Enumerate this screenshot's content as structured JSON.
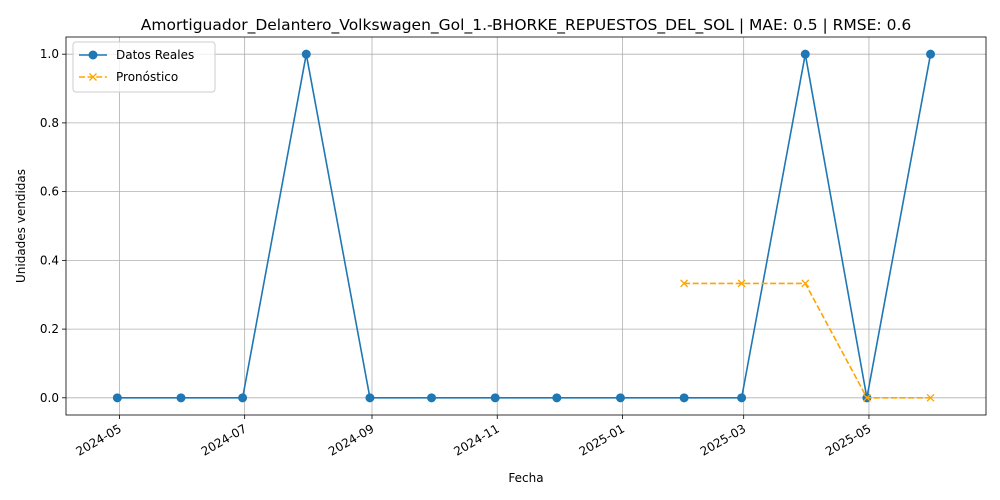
{
  "chart_data": {
    "type": "line",
    "title": "Amortiguador_Delantero_Volkswagen_Gol_1.-BHORKE_REPUESTOS_DEL_SOL | MAE: 0.5 | RMSE: 0.6",
    "xlabel": "Fecha",
    "ylabel": "Unidades vendidas",
    "ylim": [
      -0.05,
      1.05
    ],
    "xlim": [
      "2024-04-05",
      "2025-06-27"
    ],
    "grid": true,
    "legend_position": "top-left",
    "x_ticks": [
      {
        "date": "2024-05-01",
        "label": "2024-05"
      },
      {
        "date": "2024-07-01",
        "label": "2024-07"
      },
      {
        "date": "2024-09-01",
        "label": "2024-09"
      },
      {
        "date": "2024-11-01",
        "label": "2024-11"
      },
      {
        "date": "2025-01-01",
        "label": "2025-01"
      },
      {
        "date": "2025-03-01",
        "label": "2025-03"
      },
      {
        "date": "2025-05-01",
        "label": "2025-05"
      }
    ],
    "y_ticks": [
      {
        "value": 0.0,
        "label": "0.0"
      },
      {
        "value": 0.2,
        "label": "0.2"
      },
      {
        "value": 0.4,
        "label": "0.4"
      },
      {
        "value": 0.6,
        "label": "0.6"
      },
      {
        "value": 0.8,
        "label": "0.8"
      },
      {
        "value": 1.0,
        "label": "1.0"
      }
    ],
    "series": [
      {
        "name": "Datos Reales",
        "color": "#1f77b4",
        "marker": "circle",
        "linestyle": "solid",
        "x": [
          "2024-04-30",
          "2024-05-31",
          "2024-06-30",
          "2024-07-31",
          "2024-08-31",
          "2024-09-30",
          "2024-10-31",
          "2024-11-30",
          "2024-12-31",
          "2025-01-31",
          "2025-02-28",
          "2025-03-31",
          "2025-04-30",
          "2025-05-31"
        ],
        "values": [
          0,
          0,
          0,
          1,
          0,
          0,
          0,
          0,
          0,
          0,
          0,
          1,
          0,
          1
        ]
      },
      {
        "name": "Pronóstico",
        "color": "#ffa500",
        "marker": "x",
        "linestyle": "dashed",
        "x": [
          "2025-01-31",
          "2025-02-28",
          "2025-03-31",
          "2025-04-30",
          "2025-05-31"
        ],
        "values": [
          0.333,
          0.333,
          0.333,
          0,
          0
        ]
      }
    ]
  }
}
